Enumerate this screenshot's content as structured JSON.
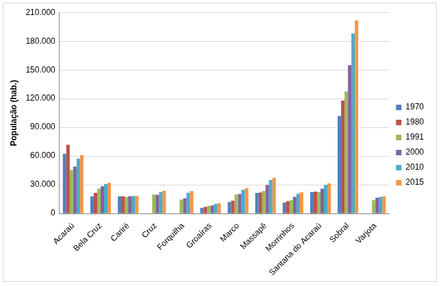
{
  "chart_data": {
    "type": "bar",
    "y_label": "População (hab.)",
    "categories": [
      "Acaraú",
      "Bela Cruz",
      "Cariré",
      "Cruz",
      "Forquilha",
      "Groaíras",
      "Marco",
      "Massapê",
      "Morrinhos",
      "Santana do Acaraú",
      "Sobral",
      "Varjota"
    ],
    "series": [
      {
        "name": "1970",
        "color": "#4f81bd",
        "values": [
          62500,
          18000,
          18000,
          null,
          null,
          6000,
          12000,
          21500,
          11500,
          22500,
          102000,
          null
        ]
      },
      {
        "name": "1980",
        "color": "#c0504d",
        "values": [
          72000,
          21500,
          18000,
          null,
          null,
          7000,
          13500,
          22000,
          13000,
          23000,
          118000,
          null
        ]
      },
      {
        "name": "1991",
        "color": "#9bbb59",
        "values": [
          45500,
          26000,
          17500,
          20000,
          14500,
          8000,
          20000,
          23500,
          14000,
          22500,
          127500,
          14000
        ]
      },
      {
        "name": "2000",
        "color": "#8064a2",
        "values": [
          49000,
          28500,
          18000,
          19500,
          16000,
          8500,
          20500,
          30000,
          17500,
          26000,
          155000,
          16500
        ]
      },
      {
        "name": "2010",
        "color": "#4bacc6",
        "values": [
          57500,
          30900,
          18300,
          22500,
          21800,
          10200,
          24700,
          35200,
          20700,
          29900,
          188000,
          17500
        ]
      },
      {
        "name": "2015",
        "color": "#f79646",
        "values": [
          61000,
          32000,
          18300,
          23800,
          23500,
          10800,
          26500,
          37500,
          22000,
          31500,
          201500,
          18000
        ]
      }
    ],
    "ylim": [
      0,
      210000
    ],
    "yticks": [
      0,
      {
        "value": 30000,
        "label": "30.000"
      },
      {
        "value": 60000,
        "label": "60.000"
      },
      {
        "value": 90000,
        "label": "90.000"
      },
      {
        "value": 120000,
        "label": "120.000"
      },
      {
        "value": 150000,
        "label": "150.000"
      },
      {
        "value": 180000,
        "label": "180.000"
      },
      {
        "value": 210000,
        "label": "210.000"
      }
    ],
    "grid": true,
    "legend": "right"
  }
}
